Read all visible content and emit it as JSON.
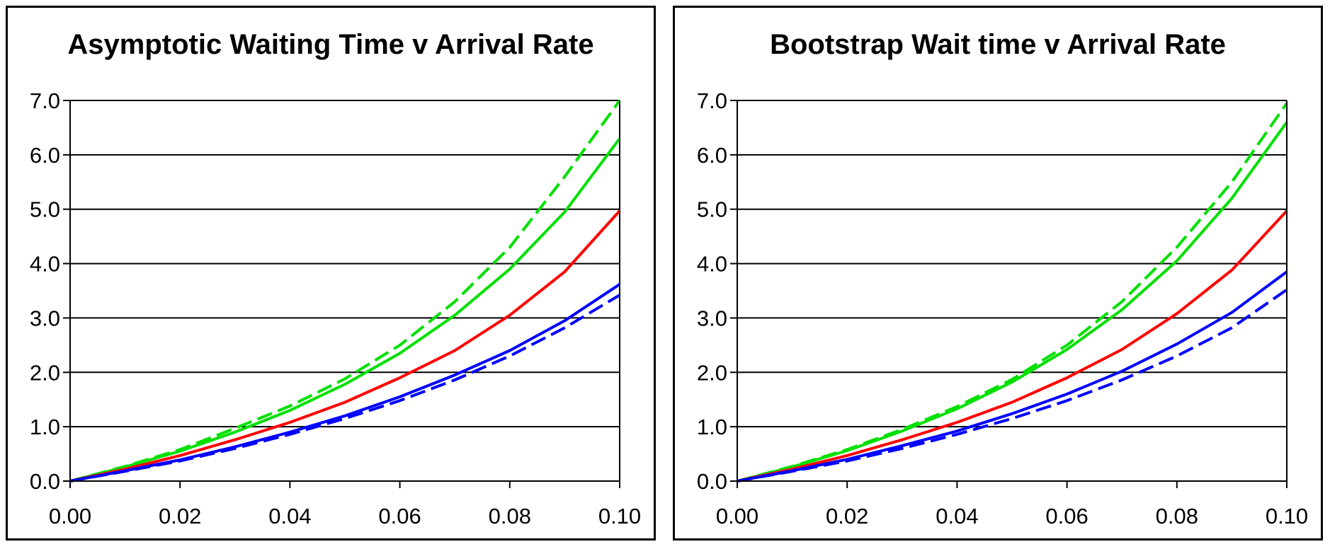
{
  "chart_data": [
    {
      "type": "line",
      "title": "Asymptotic Waiting Time v Arrival Rate",
      "xlabel": "",
      "ylabel": "",
      "xlim": [
        0,
        0.1
      ],
      "ylim": [
        0,
        7
      ],
      "grid": true,
      "x_ticks": [
        "0.00",
        "0.02",
        "0.04",
        "0.06",
        "0.08",
        "0.10"
      ],
      "y_ticks": [
        "0.0",
        "1.0",
        "2.0",
        "3.0",
        "4.0",
        "5.0",
        "6.0",
        "7.0"
      ],
      "x": [
        0,
        0.01,
        0.02,
        0.03,
        0.04,
        0.05,
        0.06,
        0.07,
        0.08,
        0.09,
        0.1
      ],
      "series": [
        {
          "name": "green dashed",
          "color": "#00e000",
          "dashed": true,
          "values": [
            0,
            0.27,
            0.58,
            0.97,
            1.38,
            1.88,
            2.5,
            3.3,
            4.3,
            5.6,
            7.0
          ]
        },
        {
          "name": "green solid",
          "color": "#00e000",
          "dashed": false,
          "values": [
            0,
            0.26,
            0.55,
            0.9,
            1.3,
            1.78,
            2.35,
            3.05,
            3.9,
            4.95,
            6.3
          ]
        },
        {
          "name": "red solid",
          "color": "#ff0000",
          "dashed": false,
          "values": [
            0,
            0.22,
            0.47,
            0.76,
            1.08,
            1.45,
            1.9,
            2.4,
            3.05,
            3.85,
            4.97
          ]
        },
        {
          "name": "blue solid",
          "color": "#0000ff",
          "dashed": false,
          "values": [
            0,
            0.19,
            0.39,
            0.63,
            0.9,
            1.2,
            1.55,
            1.95,
            2.4,
            2.95,
            3.62
          ]
        },
        {
          "name": "blue dashed",
          "color": "#0000ff",
          "dashed": true,
          "values": [
            0,
            0.18,
            0.37,
            0.6,
            0.86,
            1.15,
            1.48,
            1.86,
            2.3,
            2.82,
            3.42
          ]
        }
      ]
    },
    {
      "type": "line",
      "title": "Bootstrap Wait time v Arrival Rate",
      "xlabel": "",
      "ylabel": "",
      "xlim": [
        0,
        0.1
      ],
      "ylim": [
        0,
        7
      ],
      "grid": true,
      "x_ticks": [
        "0.00",
        "0.02",
        "0.04",
        "0.06",
        "0.08",
        "0.10"
      ],
      "y_ticks": [
        "0.0",
        "1.0",
        "2.0",
        "3.0",
        "4.0",
        "5.0",
        "6.0",
        "7.0"
      ],
      "x": [
        0,
        0.01,
        0.02,
        0.03,
        0.04,
        0.05,
        0.06,
        0.07,
        0.08,
        0.09,
        0.1
      ],
      "series": [
        {
          "name": "green dashed",
          "color": "#00e000",
          "dashed": true,
          "values": [
            0,
            0.27,
            0.58,
            0.95,
            1.37,
            1.87,
            2.5,
            3.3,
            4.3,
            5.5,
            6.95
          ]
        },
        {
          "name": "green solid",
          "color": "#00e000",
          "dashed": false,
          "values": [
            0,
            0.26,
            0.56,
            0.92,
            1.33,
            1.82,
            2.42,
            3.15,
            4.05,
            5.2,
            6.6
          ]
        },
        {
          "name": "red solid",
          "color": "#ff0000",
          "dashed": false,
          "values": [
            0,
            0.22,
            0.47,
            0.76,
            1.08,
            1.45,
            1.9,
            2.42,
            3.08,
            3.88,
            4.97
          ]
        },
        {
          "name": "blue solid",
          "color": "#0000ff",
          "dashed": false,
          "values": [
            0,
            0.19,
            0.4,
            0.65,
            0.92,
            1.24,
            1.6,
            2.02,
            2.52,
            3.1,
            3.85
          ]
        },
        {
          "name": "blue dashed",
          "color": "#0000ff",
          "dashed": true,
          "values": [
            0,
            0.18,
            0.37,
            0.6,
            0.86,
            1.15,
            1.48,
            1.86,
            2.3,
            2.82,
            3.52
          ]
        }
      ]
    }
  ]
}
